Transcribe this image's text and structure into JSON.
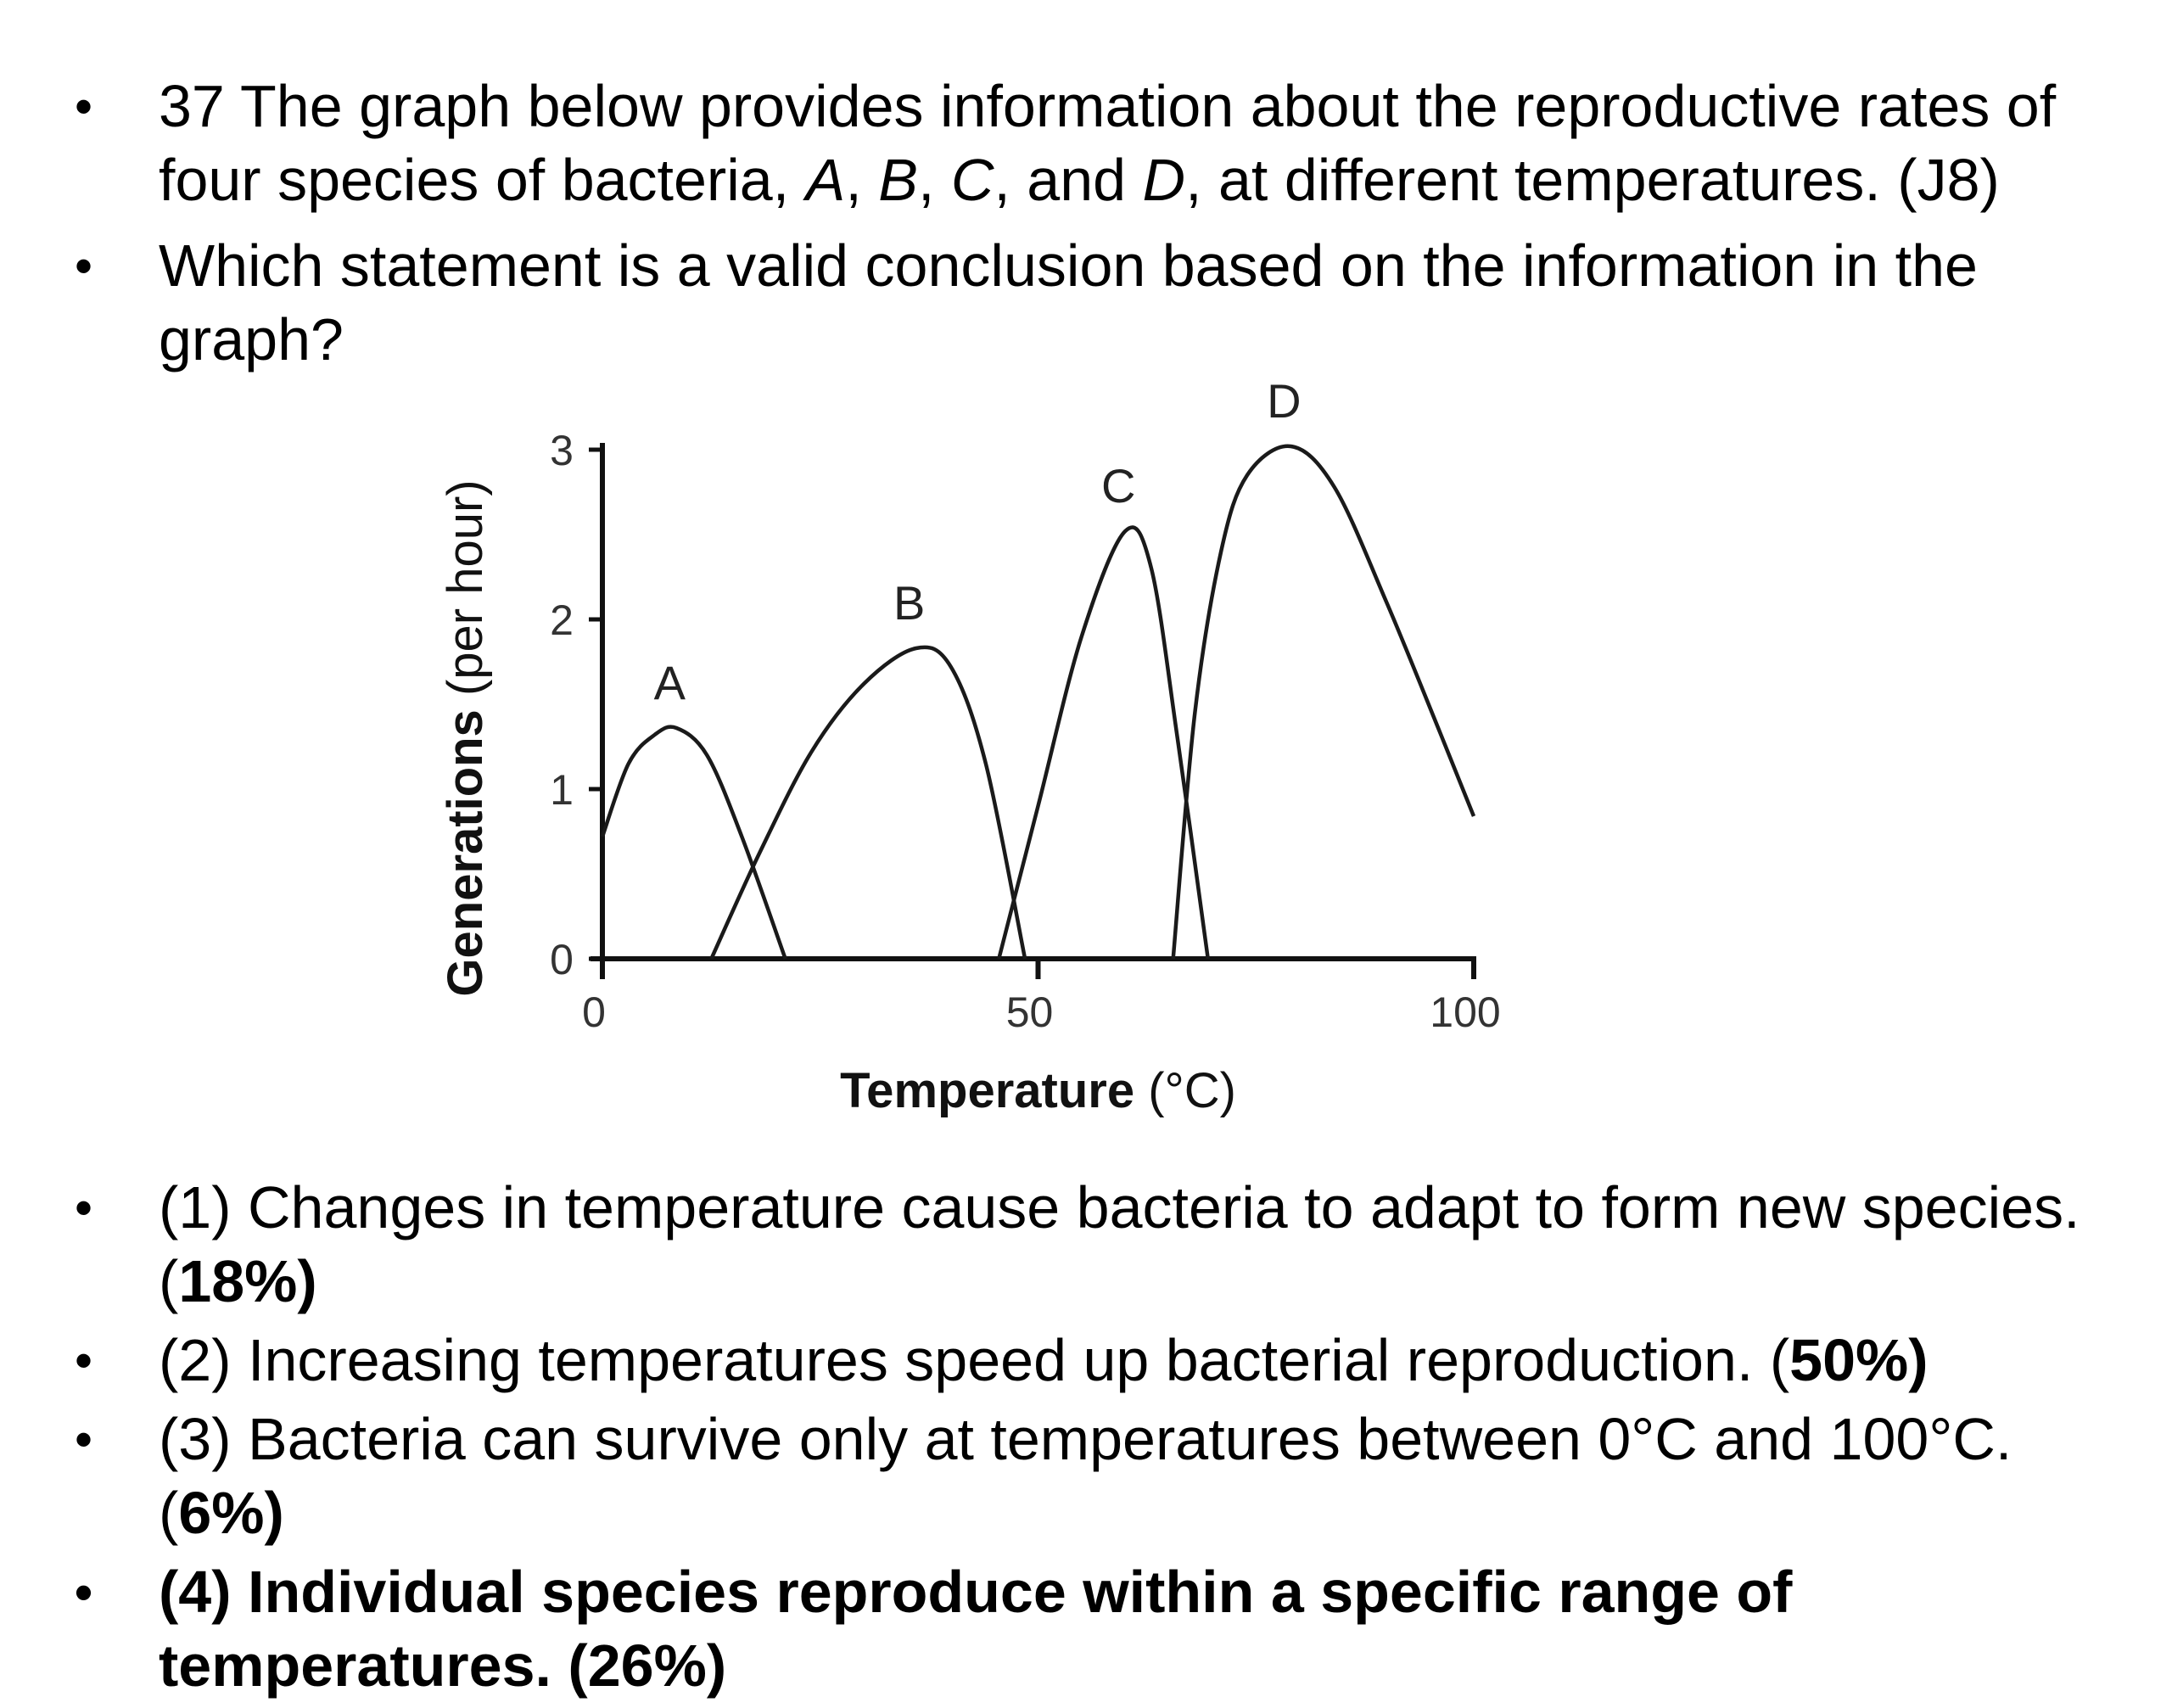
{
  "question": {
    "bullet": "•",
    "line1": "37 The graph below provides information about the reproductive rates of four species of bacteria, ",
    "A": "A",
    "sep1": ", ",
    "B": "B",
    "sep2": ", ",
    "C": "C",
    "sep3": ", and ",
    "D": "D",
    "line1_end": ", at different temperatures. (J8)",
    "line2": "Which statement is a valid conclusion based on the information in the graph?"
  },
  "options": [
    {
      "text": "(1) Changes in temperature cause bacteria to adapt to form new species. (",
      "pct": "18%",
      "close": ")"
    },
    {
      "text": "(2) Increasing temperatures speed up bacterial reproduction. (",
      "pct": "50%",
      "close": ")"
    },
    {
      "text": "(3) Bacteria can survive only at temperatures between 0°C and 100°C. (",
      "pct": "6%",
      "close": ")"
    },
    {
      "text": "(4) Individual species reproduce within a specific range of temperatures. (26%)"
    }
  ],
  "chart_data": {
    "type": "line",
    "xlabel_bold": "Temperature",
    "xlabel_unit": " (°C)",
    "ylabel_bold": "Generations",
    "ylabel_unit": " (per hour)",
    "xlim": [
      0,
      100
    ],
    "ylim": [
      0,
      3
    ],
    "x_ticks": [
      "0",
      "50",
      "100"
    ],
    "y_ticks": [
      "0",
      "1",
      "2",
      "3"
    ],
    "series": [
      {
        "name": "A",
        "x": [
          0,
          3,
          6,
          8.5,
          12,
          16,
          21
        ],
        "y": [
          0.72,
          1.15,
          1.32,
          1.36,
          1.2,
          0.72,
          0
        ]
      },
      {
        "name": "B",
        "x": [
          12.5,
          18,
          24,
          30,
          36,
          40,
          44,
          48.5
        ],
        "y": [
          0,
          0.62,
          1.22,
          1.62,
          1.83,
          1.72,
          1.15,
          0
        ]
      },
      {
        "name": "C",
        "x": [
          45.5,
          50,
          55,
          60,
          63,
          66,
          69.5
        ],
        "y": [
          0,
          0.9,
          1.9,
          2.52,
          2.3,
          1.3,
          0
        ]
      },
      {
        "name": "D",
        "x": [
          65.5,
          68,
          71,
          74,
          79,
          84,
          90,
          96,
          100
        ],
        "y": [
          0,
          1.45,
          2.4,
          2.85,
          3.02,
          2.78,
          2.1,
          1.35,
          0.84
        ]
      }
    ]
  }
}
